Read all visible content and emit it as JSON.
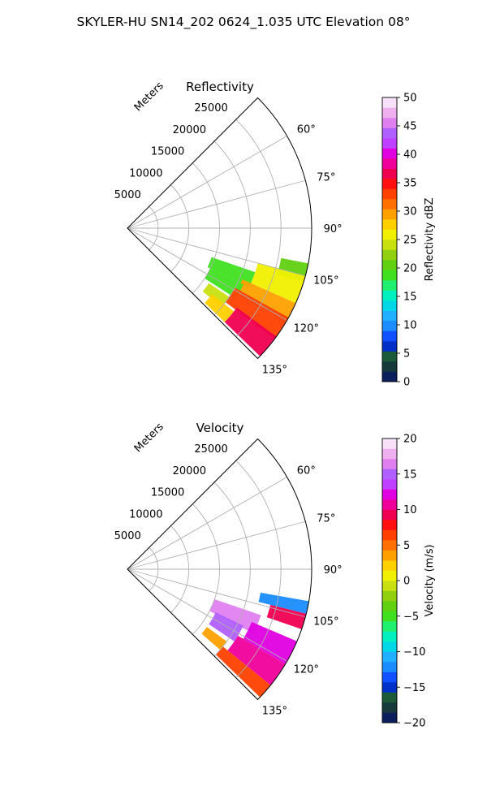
{
  "suptitle": "SKYLER-HU  SN14_202  0624_1.035 UTC Elevation 08°",
  "chart_data": [
    {
      "type": "heatmap",
      "projection": "polar-sector",
      "title": "Reflectivity",
      "theta_range_deg": [
        45,
        135
      ],
      "theta_ticks": [
        "60°",
        "75°",
        "90°",
        "105°",
        "120°",
        "135°"
      ],
      "theta_tick_values": [
        60,
        75,
        90,
        105,
        120,
        135
      ],
      "r_label": "Meters",
      "r_ticks": [
        "5000",
        "10000",
        "15000",
        "20000",
        "25000"
      ],
      "r_tick_values": [
        5000,
        10000,
        15000,
        20000,
        25000
      ],
      "r_max": 30000,
      "grid": true,
      "colorbar": {
        "label": "Reflectivity dBZ",
        "range": [
          0,
          50
        ],
        "ticks": [
          "0",
          "5",
          "10",
          "15",
          "20",
          "25",
          "30",
          "35",
          "40",
          "45",
          "50"
        ],
        "colors": [
          "#0a1f5c",
          "#163a3a",
          "#1d5a3a",
          "#0030c8",
          "#1050ff",
          "#1a8cff",
          "#20b0ff",
          "#00d8e8",
          "#00f0c0",
          "#20f070",
          "#40e020",
          "#60d010",
          "#90d010",
          "#c8e010",
          "#f0f000",
          "#ffd000",
          "#ffa000",
          "#ff7000",
          "#ff4000",
          "#ff1010",
          "#f00050",
          "#f0009a",
          "#e000e0",
          "#c040ff",
          "#b060ff",
          "#e080f0",
          "#f0b0f0",
          "#f8e0f8"
        ]
      },
      "echo_regions": [
        {
          "theta": [
            101,
            107
          ],
          "r": [
            25500,
            30000
          ],
          "value": 20
        },
        {
          "theta": [
            105,
            114
          ],
          "r": [
            22000,
            30000
          ],
          "value": 26
        },
        {
          "theta": [
            109,
            116
          ],
          "r": [
            14500,
            22000
          ],
          "value": 19
        },
        {
          "theta": [
            114,
            120
          ],
          "r": [
            20500,
            30000
          ],
          "value": 30
        },
        {
          "theta": [
            116,
            123
          ],
          "r": [
            15000,
            21000
          ],
          "value": 19
        },
        {
          "theta": [
            119,
            127
          ],
          "r": [
            20000,
            30000
          ],
          "value": 33
        },
        {
          "theta": [
            124,
            130
          ],
          "r": [
            16000,
            20000
          ],
          "value": 24
        },
        {
          "theta": [
            126,
            134
          ],
          "r": [
            22000,
            30000
          ],
          "value": 37
        },
        {
          "theta": [
            128,
            134
          ],
          "r": [
            17500,
            22000
          ],
          "value": 27
        }
      ]
    },
    {
      "type": "heatmap",
      "projection": "polar-sector",
      "title": "Velocity",
      "theta_range_deg": [
        45,
        135
      ],
      "theta_ticks": [
        "60°",
        "75°",
        "90°",
        "105°",
        "120°",
        "135°"
      ],
      "theta_tick_values": [
        60,
        75,
        90,
        105,
        120,
        135
      ],
      "r_label": "Meters",
      "r_ticks": [
        "5000",
        "10000",
        "15000",
        "20000",
        "25000"
      ],
      "r_tick_values": [
        5000,
        10000,
        15000,
        20000,
        25000
      ],
      "r_max": 30000,
      "grid": true,
      "colorbar": {
        "label": "Velocity (m/s)",
        "range": [
          -20,
          20
        ],
        "ticks": [
          "−20",
          "−15",
          "−10",
          "−5",
          "0",
          "5",
          "10",
          "15",
          "20"
        ],
        "colors": [
          "#0a1f5c",
          "#163a3a",
          "#1d5a3a",
          "#0030c8",
          "#1050ff",
          "#1a8cff",
          "#20b0ff",
          "#00d8e8",
          "#00f0c0",
          "#20f070",
          "#40e020",
          "#60d010",
          "#90d010",
          "#c8e010",
          "#f0f000",
          "#ffd000",
          "#ffa000",
          "#ff7000",
          "#ff4000",
          "#ff1010",
          "#f00050",
          "#f0009a",
          "#e000e0",
          "#c040ff",
          "#b060ff",
          "#e080f0",
          "#f0b0f0",
          "#f8e0f8"
        ]
      },
      "echo_regions": [
        {
          "theta": [
            100,
            104
          ],
          "r": [
            22000,
            30000
          ],
          "value": -12
        },
        {
          "theta": [
            104,
            109
          ],
          "r": [
            24000,
            30000
          ],
          "value": 9
        },
        {
          "theta": [
            109,
            117
          ],
          "r": [
            15000,
            23000
          ],
          "value": 16
        },
        {
          "theta": [
            113,
            121
          ],
          "r": [
            22000,
            30000
          ],
          "value": 12
        },
        {
          "theta": [
            116,
            124
          ],
          "r": [
            16000,
            21000
          ],
          "value": 15
        },
        {
          "theta": [
            121,
            129
          ],
          "r": [
            21000,
            30000
          ],
          "value": 11
        },
        {
          "theta": [
            126,
            131
          ],
          "r": [
            16000,
            20000
          ],
          "value": 3
        },
        {
          "theta": [
            129,
            134
          ],
          "r": [
            20000,
            30000
          ],
          "value": 7
        }
      ]
    }
  ]
}
